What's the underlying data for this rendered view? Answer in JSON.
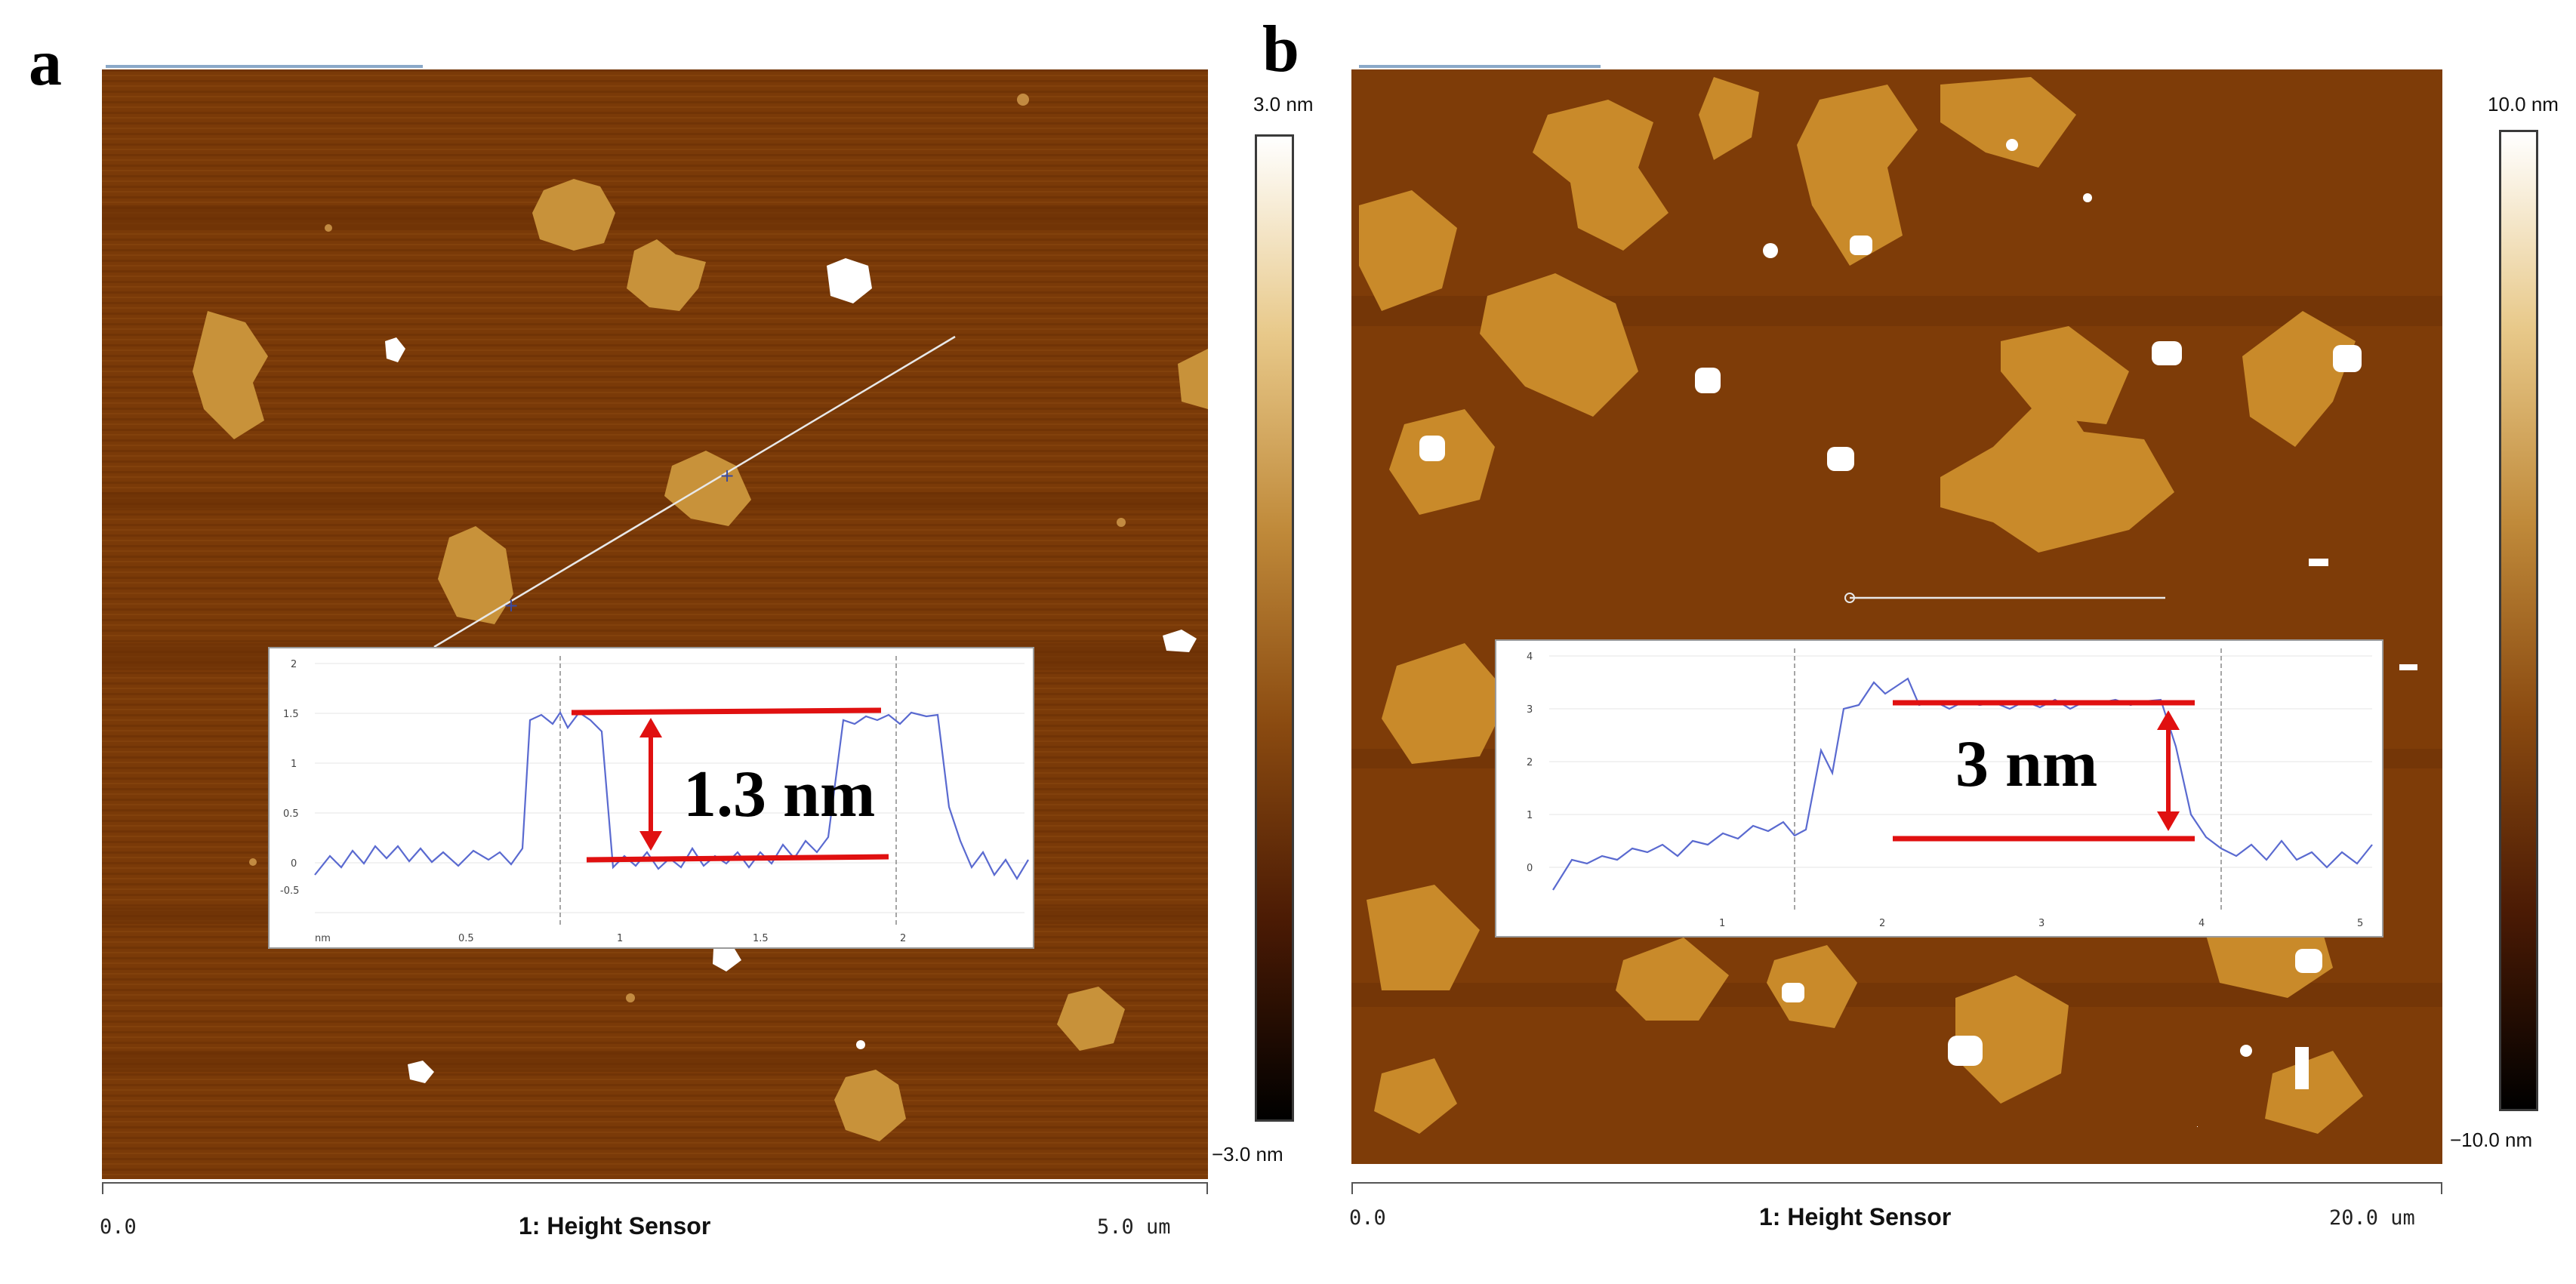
{
  "panels": [
    {
      "letter": "a",
      "scale_max": "3.0 nm",
      "scale_min": "−3.0 nm",
      "axis_start": "0.0",
      "axis_end": "5.0 um",
      "axis_title": "1: Height Sensor",
      "measurement": "1.3 nm",
      "inset_y_ticks": [
        "2",
        "1.5",
        "1",
        "0.5",
        "0",
        "-0.5"
      ],
      "inset_x_ticks": [
        "nm",
        "0.5",
        "1",
        "1.5",
        "2"
      ]
    },
    {
      "letter": "b",
      "scale_max": "10.0 nm",
      "scale_min": "−10.0 nm",
      "axis_start": "0.0",
      "axis_end": "20.0 um",
      "axis_title": "1: Height Sensor",
      "measurement": "3 nm",
      "inset_y_ticks": [
        "4",
        "3",
        "2",
        "1",
        "0"
      ],
      "inset_x_ticks": [
        "1",
        "2",
        "3",
        "4",
        "5"
      ]
    }
  ],
  "colors": {
    "substrate": "#7a3a08",
    "island": "#c8923a",
    "highlight": "#ffffff",
    "marker": "#e01010",
    "profile": "#5a6ad0"
  }
}
